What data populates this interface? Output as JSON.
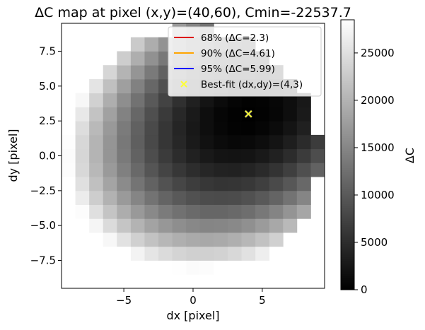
{
  "chart_data": {
    "type": "heatmap",
    "title": "ΔC map at pixel (x,y)=(40,60), Cmin=-22537.7",
    "xlabel": "dx [pixel]",
    "ylabel": "dy [pixel]",
    "xlim": [
      -9.5,
      9.5
    ],
    "ylim": [
      -9.5,
      9.5
    ],
    "x_ticks": [
      -5,
      0,
      5
    ],
    "x_tick_labels": [
      "−5",
      "0",
      "5"
    ],
    "y_ticks": [
      -7.5,
      -5.0,
      -2.5,
      0.0,
      2.5,
      5.0,
      7.5
    ],
    "y_tick_labels": [
      "−7.5",
      "−5.0",
      "−2.5",
      "0.0",
      "2.5",
      "5.0",
      "7.5"
    ],
    "colormap": "gray",
    "colorbar": {
      "label": "ΔC",
      "range": [
        0,
        28500
      ],
      "ticks": [
        0,
        5000,
        10000,
        15000,
        20000,
        25000
      ],
      "tick_labels": [
        "0",
        "5000",
        "10000",
        "15000",
        "20000",
        "25000"
      ]
    },
    "legend": {
      "placement": "top-right",
      "entries": [
        {
          "label": "68% (ΔC=2.3)",
          "color": "#dd0000",
          "marker": "line"
        },
        {
          "label": "90% (ΔC=4.61)",
          "color": "#ffa500",
          "marker": "line"
        },
        {
          "label": "95% (ΔC=5.99)",
          "color": "#0000ff",
          "marker": "line"
        },
        {
          "label": "Best-fit (dx,dy)=(4,3)",
          "color": "#ffff33",
          "marker": "x"
        }
      ]
    },
    "best_fit": {
      "dx": 4,
      "dy": 3
    },
    "grid": false
  }
}
